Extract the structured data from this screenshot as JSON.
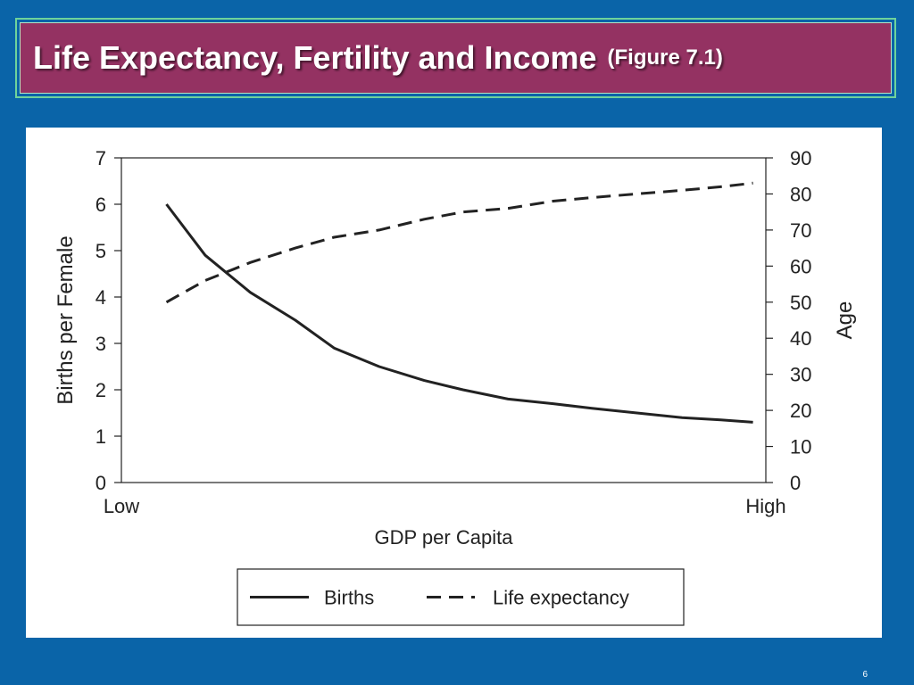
{
  "slide": {
    "title": "Life Expectancy, Fertility and Income",
    "figure_ref": "(Figure 7.1)",
    "page_number": "6"
  },
  "colors": {
    "background": "#0a64a8",
    "title_fill": "#943262",
    "title_border": "#6fd39a",
    "line": "#222222"
  },
  "chart_data": {
    "type": "line",
    "xlabel": "GDP per Capita",
    "ylabel_left": "Births per Female",
    "ylabel_right": "Age",
    "x_tick_labels": [
      "Low",
      "High"
    ],
    "x": [
      0.07,
      0.13,
      0.2,
      0.27,
      0.33,
      0.4,
      0.47,
      0.53,
      0.6,
      0.67,
      0.73,
      0.8,
      0.87,
      0.93,
      0.98
    ],
    "ylim_left": [
      0,
      7
    ],
    "ylim_right": [
      0,
      90
    ],
    "yticks_left": [
      0,
      1,
      2,
      3,
      4,
      5,
      6,
      7
    ],
    "yticks_right": [
      0,
      10,
      20,
      30,
      40,
      50,
      60,
      70,
      80,
      90
    ],
    "grid": false,
    "legend_position": "bottom-center",
    "series": [
      {
        "name": "Births",
        "axis": "left",
        "style": "solid",
        "values": [
          6.0,
          4.9,
          4.1,
          3.5,
          2.9,
          2.5,
          2.2,
          2.0,
          1.8,
          1.7,
          1.6,
          1.5,
          1.4,
          1.35,
          1.3
        ]
      },
      {
        "name": "Life expectancy",
        "axis": "right",
        "style": "dashed",
        "values": [
          50,
          56,
          61,
          65,
          68,
          70,
          73,
          75,
          76,
          78,
          79,
          80,
          81,
          82,
          83
        ]
      }
    ]
  }
}
